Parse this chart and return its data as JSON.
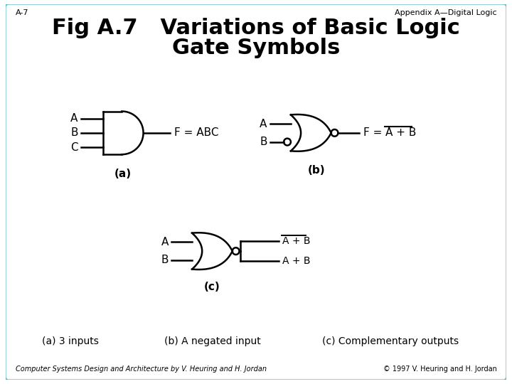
{
  "title_line1": "Fig A.7   Variations of Basic Logic",
  "title_line2": "Gate Symbols",
  "header_left": "A-7",
  "header_right": "Appendix A—Digital Logic",
  "footer_left": "Computer Systems Design and Architecture by V. Heuring and H. Jordan",
  "footer_right": "© 1997 V. Heuring and H. Jordan",
  "label_a": "(a)",
  "label_b": "(b)",
  "label_c": "(c)",
  "desc_a": "(a) 3 inputs",
  "desc_b": "(b) A negated input",
  "desc_c": "(c) Complementary outputs",
  "bg_color": "#ffffff",
  "border_color": "#5bbccc",
  "line_color": "#000000"
}
